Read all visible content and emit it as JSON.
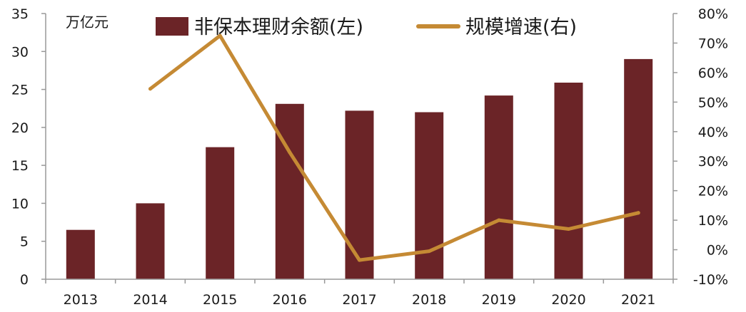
{
  "chart_data": {
    "type": "bar",
    "unit_label": "万亿元",
    "categories": [
      "2013",
      "2014",
      "2015",
      "2016",
      "2017",
      "2018",
      "2019",
      "2020",
      "2021"
    ],
    "series": [
      {
        "name": "非保本理财余额(左)",
        "type": "bar",
        "axis": "left",
        "color": "#6b2427",
        "values": [
          6.5,
          10.0,
          17.4,
          23.1,
          22.2,
          22.0,
          24.2,
          25.9,
          29.0
        ]
      },
      {
        "name": "规模增速(右)",
        "type": "line",
        "axis": "right",
        "color": "#c58a34",
        "values": [
          null,
          54.5,
          72.5,
          33.0,
          -3.5,
          -0.5,
          10.0,
          7.0,
          12.5
        ]
      }
    ],
    "left_axis": {
      "min": 0,
      "max": 35,
      "ticks": [
        "0",
        "5",
        "10",
        "15",
        "20",
        "25",
        "30",
        "35"
      ]
    },
    "right_axis": {
      "min": -10,
      "max": 80,
      "ticks": [
        "-10%",
        "0%",
        "10%",
        "20%",
        "30%",
        "40%",
        "50%",
        "60%",
        "70%",
        "80%"
      ]
    },
    "grid": false,
    "legend_position": "top"
  }
}
